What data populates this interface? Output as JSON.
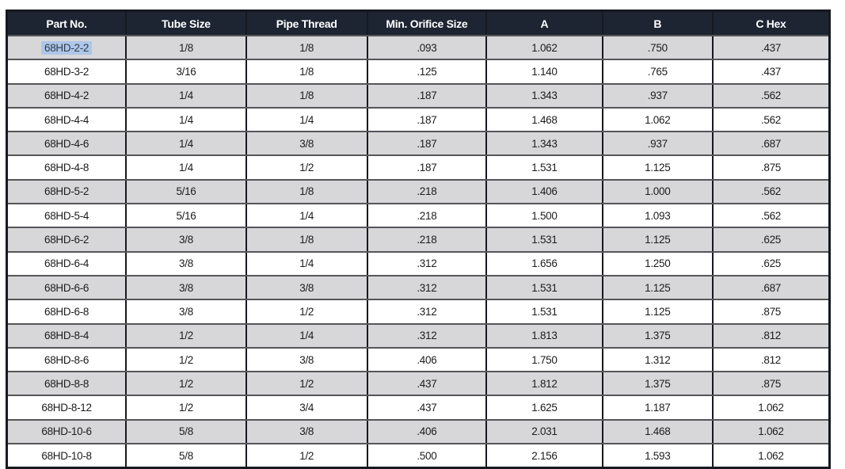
{
  "table": {
    "columns": [
      "Part No.",
      "Tube Size",
      "Pipe Thread",
      "Min. Orifice Size",
      "A",
      "B",
      "C Hex"
    ],
    "column_keys": [
      "part-no",
      "tube-size",
      "pipe-thread",
      "min-orifice-size",
      "dim-a",
      "dim-b",
      "c-hex"
    ],
    "rows": [
      [
        "68HD-2-2",
        "1/8",
        "1/8",
        ".093",
        "1.062",
        ".750",
        ".437"
      ],
      [
        "68HD-3-2",
        "3/16",
        "1/8",
        ".125",
        "1.140",
        ".765",
        ".437"
      ],
      [
        "68HD-4-2",
        "1/4",
        "1/8",
        ".187",
        "1.343",
        ".937",
        ".562"
      ],
      [
        "68HD-4-4",
        "1/4",
        "1/4",
        ".187",
        "1.468",
        "1.062",
        ".562"
      ],
      [
        "68HD-4-6",
        "1/4",
        "3/8",
        ".187",
        "1.343",
        ".937",
        ".687"
      ],
      [
        "68HD-4-8",
        "1/4",
        "1/2",
        ".187",
        "1.531",
        "1.125",
        ".875"
      ],
      [
        "68HD-5-2",
        "5/16",
        "1/8",
        ".218",
        "1.406",
        "1.000",
        ".562"
      ],
      [
        "68HD-5-4",
        "5/16",
        "1/4",
        ".218",
        "1.500",
        "1.093",
        ".562"
      ],
      [
        "68HD-6-2",
        "3/8",
        "1/8",
        ".218",
        "1.531",
        "1.125",
        ".625"
      ],
      [
        "68HD-6-4",
        "3/8",
        "1/4",
        ".312",
        "1.656",
        "1.250",
        ".625"
      ],
      [
        "68HD-6-6",
        "3/8",
        "3/8",
        ".312",
        "1.531",
        "1.125",
        ".687"
      ],
      [
        "68HD-6-8",
        "3/8",
        "1/2",
        ".312",
        "1.531",
        "1.125",
        ".875"
      ],
      [
        "68HD-8-4",
        "1/2",
        "1/4",
        ".312",
        "1.813",
        "1.375",
        ".812"
      ],
      [
        "68HD-8-6",
        "1/2",
        "3/8",
        ".406",
        "1.750",
        "1.312",
        ".812"
      ],
      [
        "68HD-8-8",
        "1/2",
        "1/2",
        ".437",
        "1.812",
        "1.375",
        ".875"
      ],
      [
        "68HD-8-12",
        "1/2",
        "3/4",
        ".437",
        "1.625",
        "1.187",
        "1.062"
      ],
      [
        "68HD-10-6",
        "5/8",
        "3/8",
        ".406",
        "2.031",
        "1.468",
        "1.062"
      ],
      [
        "68HD-10-8",
        "5/8",
        "1/2",
        ".500",
        "2.156",
        "1.593",
        "1.062"
      ]
    ],
    "selection": {
      "row": 0,
      "col": 0
    }
  },
  "colors": {
    "header_bg": "#1d2533",
    "header_text": "#ffffff",
    "row_bg": "#ffffff",
    "row_alt_bg": "#d7d7d9",
    "cell_text": "#1c1c1e",
    "border_vertical": "#16191f",
    "border_horizontal": "#55555a",
    "selection_bg": "#aec6e8",
    "selection_text": "#303c4b"
  }
}
